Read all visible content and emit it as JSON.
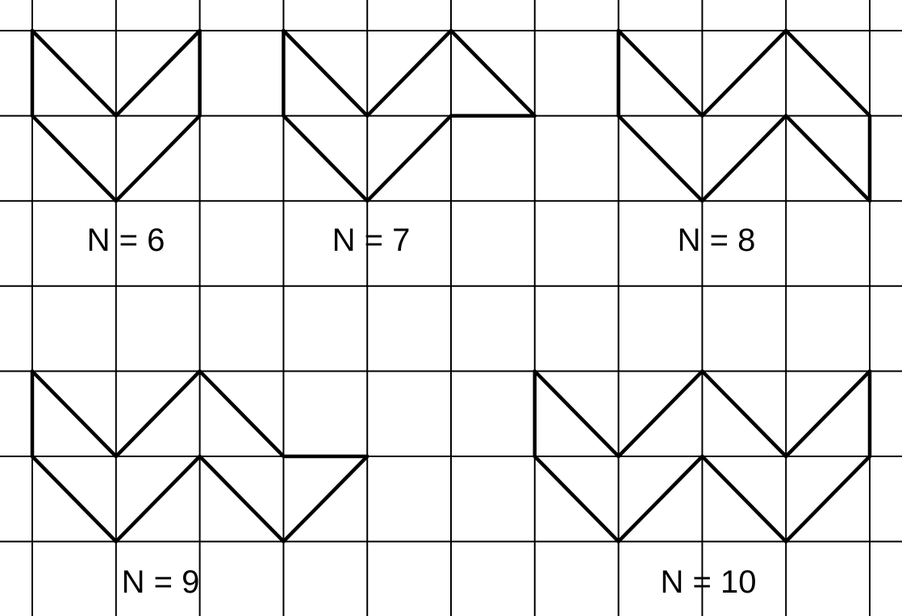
{
  "figures": [
    {
      "label": "N = 6",
      "segments": [
        [
          0,
          0,
          1,
          1
        ],
        [
          1,
          1,
          2,
          0
        ],
        [
          2,
          0,
          2,
          1
        ],
        [
          0,
          0,
          0,
          1
        ],
        [
          0,
          1,
          1,
          2
        ],
        [
          1,
          2,
          2,
          1
        ]
      ]
    },
    {
      "label": "N = 7",
      "segments": [
        [
          3,
          0,
          4,
          1
        ],
        [
          4,
          1,
          5,
          0
        ],
        [
          5,
          0,
          6,
          1
        ],
        [
          6,
          1,
          5,
          1
        ],
        [
          5,
          1,
          4,
          2
        ],
        [
          4,
          2,
          3,
          1
        ],
        [
          3,
          1,
          3,
          0
        ]
      ]
    },
    {
      "label": "N = 8",
      "segments": [
        [
          7,
          0,
          8,
          1
        ],
        [
          8,
          1,
          9,
          0
        ],
        [
          9,
          0,
          10,
          1
        ],
        [
          10,
          1,
          10,
          2
        ],
        [
          10,
          2,
          9,
          1
        ],
        [
          9,
          1,
          8,
          2
        ],
        [
          8,
          2,
          7,
          1
        ],
        [
          7,
          1,
          7,
          0
        ]
      ]
    },
    {
      "label": "N = 9",
      "segments": [
        [
          0,
          4,
          1,
          5
        ],
        [
          1,
          5,
          2,
          4
        ],
        [
          2,
          4,
          3,
          5
        ],
        [
          3,
          5,
          4,
          5
        ],
        [
          4,
          5,
          3,
          6
        ],
        [
          3,
          6,
          2,
          5
        ],
        [
          2,
          5,
          1,
          6
        ],
        [
          1,
          6,
          0,
          5
        ],
        [
          0,
          5,
          0,
          4
        ]
      ]
    },
    {
      "label": "N = 10",
      "segments": [
        [
          6,
          4,
          7,
          5
        ],
        [
          7,
          5,
          8,
          4
        ],
        [
          8,
          4,
          9,
          5
        ],
        [
          9,
          5,
          10,
          4
        ],
        [
          10,
          4,
          10,
          5
        ],
        [
          10,
          5,
          9,
          6
        ],
        [
          9,
          6,
          8,
          5
        ],
        [
          8,
          5,
          7,
          6
        ],
        [
          7,
          6,
          6,
          5
        ],
        [
          6,
          5,
          6,
          4
        ]
      ]
    }
  ]
}
